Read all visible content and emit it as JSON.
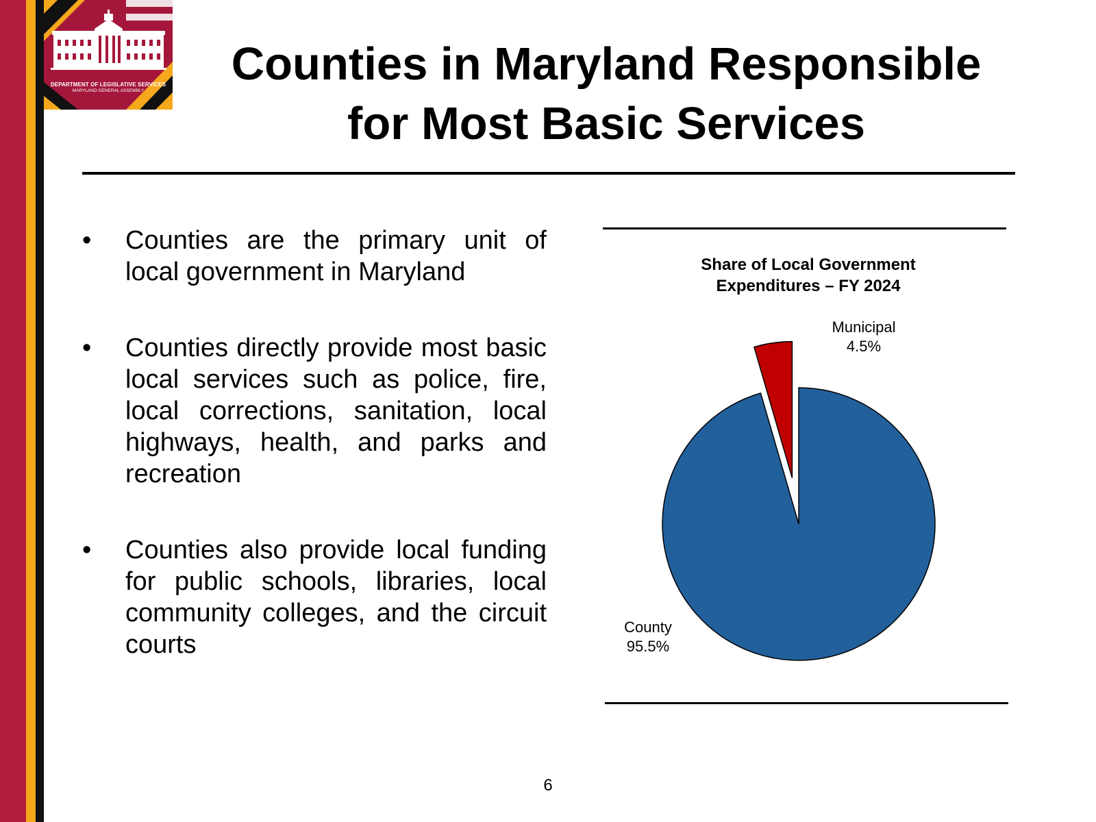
{
  "logo": {
    "line1": "DEPARTMENT OF LEGISLATIVE SERVICES",
    "line2": "MARYLAND GENERAL ASSEMBLY"
  },
  "title": {
    "line1": "Counties in Maryland Responsible",
    "line2": "for Most Basic Services"
  },
  "bullets": [
    {
      "marker": "•",
      "text": "Counties are the primary unit of local government in Maryland"
    },
    {
      "marker": "•",
      "text": "Counties directly provide most basic local services such as police, fire, local corrections, sanitation, local highways, health, and parks and recreation"
    },
    {
      "marker": "•",
      "text": "Counties also provide local funding for public schools, libraries, local community colleges, and the circuit courts"
    }
  ],
  "chart_data": {
    "type": "pie",
    "title": "Share of Local Government Expenditures – FY 2024",
    "title_line1": "Share of Local Government",
    "title_line2": "Expenditures – FY 2024",
    "slices": [
      {
        "label": "County",
        "value": 95.5,
        "value_label": "95.5%",
        "color": "#22609c"
      },
      {
        "label": "Municipal",
        "value": 4.5,
        "value_label": "4.5%",
        "color": "#c00000",
        "exploded": true
      }
    ],
    "start_angle": "12 o'clock",
    "direction": "clockwise",
    "legend": "none"
  },
  "colors": {
    "stripe_red": "#b01c3a",
    "stripe_gold": "#f5a81c",
    "stripe_black": "#111111"
  },
  "page_number": "6"
}
